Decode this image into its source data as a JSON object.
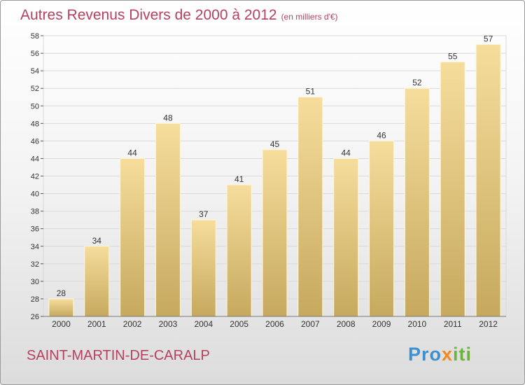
{
  "title": "Autres Revenus Divers de 2000 à 2012",
  "unit": "(en milliers d'€)",
  "town": "SAINT-MARTIN-DE-CARALP",
  "logo": {
    "p1": "Pro",
    "p2": "x",
    "p3": "iti"
  },
  "colors": {
    "title": "#b5415e",
    "bar_light": "#f6dd9c",
    "bar_dark": "#c6a95e",
    "grid": "#d9d9d9"
  },
  "chart_data": {
    "type": "bar",
    "categories": [
      "2000",
      "2001",
      "2002",
      "2003",
      "2004",
      "2005",
      "2006",
      "2007",
      "2008",
      "2009",
      "2010",
      "2011",
      "2012"
    ],
    "values": [
      28,
      34,
      44,
      48,
      37,
      41,
      45,
      51,
      44,
      46,
      52,
      55,
      57
    ],
    "data_labels": [
      "28",
      "34",
      "44",
      "48",
      "37",
      "41",
      "45",
      "51",
      "44",
      "46",
      "52",
      "55",
      "57"
    ],
    "yticks": [
      "26",
      "28",
      "30",
      "32",
      "34",
      "36",
      "38",
      "40",
      "42",
      "44",
      "46",
      "48",
      "50",
      "52",
      "54",
      "56",
      "58"
    ],
    "ylim": [
      26,
      58
    ],
    "grid": true,
    "legend": "none"
  }
}
